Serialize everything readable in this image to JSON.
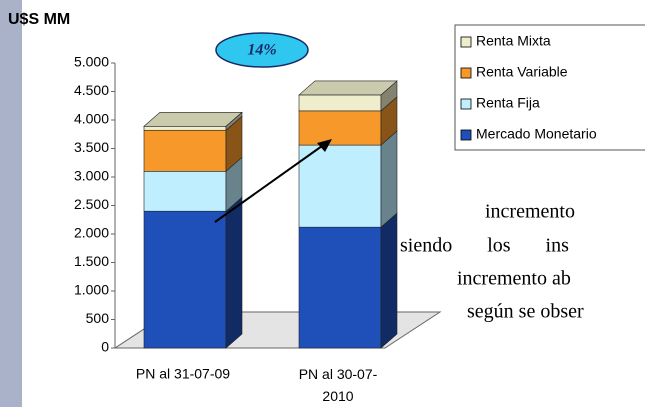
{
  "chart_data": {
    "type": "stacked_bar_3d",
    "title": "U$S MM",
    "annotation": "14%",
    "categories": [
      "PN al 31-07-09",
      "PN al 30-07-2010"
    ],
    "series": [
      {
        "name": "Mercado Monetario",
        "color": "#1f4fb8",
        "values": [
          2400,
          2120
        ]
      },
      {
        "name": "Renta Fija",
        "color": "#bfefff",
        "values": [
          700,
          1440
        ]
      },
      {
        "name": "Renta Variable",
        "color": "#f7992a",
        "values": [
          720,
          600
        ]
      },
      {
        "name": "Renta Mixta",
        "color": "#eeeecc",
        "values": [
          70,
          280
        ]
      }
    ],
    "ylim": [
      0,
      5000
    ],
    "yticks": [
      0,
      {
        "value": 500,
        "label": "500"
      },
      {
        "value": 1000,
        "label": "1.000"
      },
      {
        "value": 1500,
        "label": "1.500"
      },
      {
        "value": 2000,
        "label": "2.000"
      },
      {
        "value": 2500,
        "label": "2.500"
      },
      {
        "value": 3000,
        "label": "3.000"
      },
      {
        "value": 3500,
        "label": "3.500"
      },
      {
        "value": 4000,
        "label": "4.000"
      },
      {
        "value": 4500,
        "label": "4.500"
      },
      {
        "value": 5000,
        "label": "5.000"
      }
    ],
    "legend": "right"
  },
  "document_text": [
    "incremento",
    "siendo los ins",
    "incremento ab",
    "según se obser"
  ]
}
